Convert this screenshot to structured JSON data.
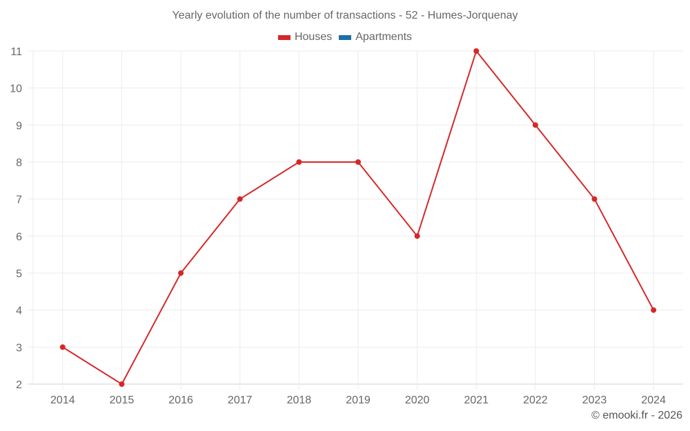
{
  "chart_data": {
    "type": "line",
    "title": "Yearly evolution of the number of transactions - 52 - Humes-Jorquenay",
    "categories": [
      "2014",
      "2015",
      "2016",
      "2017",
      "2018",
      "2019",
      "2020",
      "2021",
      "2022",
      "2023",
      "2024"
    ],
    "series": [
      {
        "name": "Houses",
        "color": "#d62728",
        "values": [
          3,
          2,
          5,
          7,
          8,
          8,
          6,
          11,
          9,
          7,
          4
        ]
      },
      {
        "name": "Apartments",
        "color": "#1f6fa8",
        "values": []
      }
    ],
    "xlabel": "",
    "ylabel": "",
    "ylim": [
      2,
      11
    ],
    "yticks": [
      2,
      3,
      4,
      5,
      6,
      7,
      8,
      9,
      10,
      11
    ],
    "grid": true,
    "legend_position": "top"
  },
  "header": {
    "title": "Yearly evolution of the number of transactions - 52 - Humes-Jorquenay"
  },
  "legend": {
    "items": [
      {
        "label": "Houses",
        "color": "#d62728"
      },
      {
        "label": "Apartments",
        "color": "#1f6fa8"
      }
    ]
  },
  "footer": {
    "credit": "© emooki.fr - 2026"
  }
}
